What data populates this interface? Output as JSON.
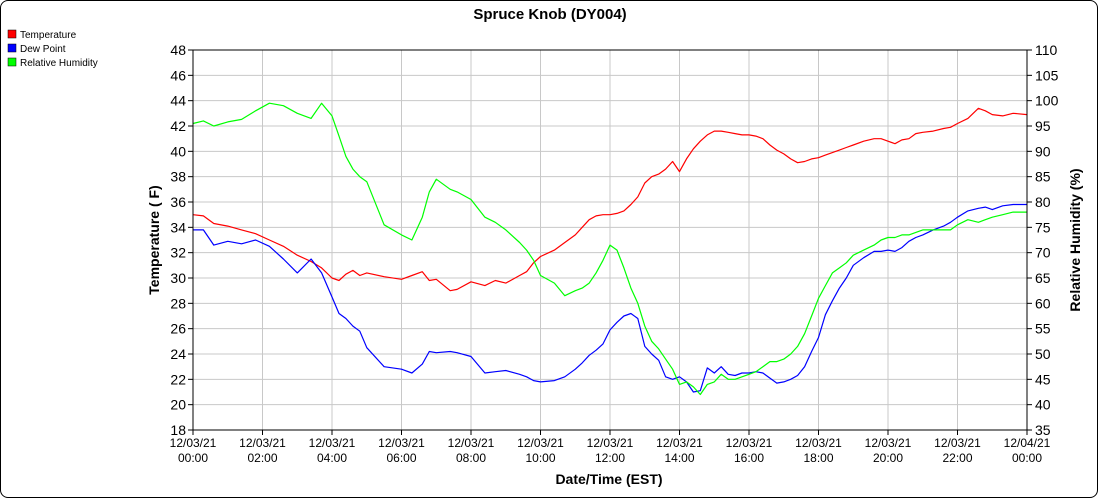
{
  "chart_data": {
    "type": "line",
    "title": "Spruce Knob (DY004)",
    "xlabel": "Date/Time (EST)",
    "ylabel_left": "Temperature ( F)",
    "ylabel_right": "Relative Humidity (%)",
    "ylim_left": [
      18,
      48
    ],
    "yticks_left": [
      "18",
      "20",
      "22",
      "24",
      "26",
      "28",
      "30",
      "32",
      "34",
      "36",
      "38",
      "40",
      "42",
      "44",
      "46",
      "48"
    ],
    "ylim_right": [
      35,
      110
    ],
    "yticks_right": [
      "35",
      "40",
      "45",
      "50",
      "55",
      "60",
      "65",
      "70",
      "75",
      "80",
      "85",
      "90",
      "95",
      "100",
      "105",
      "110"
    ],
    "xlim": [
      0,
      24
    ],
    "xticks": [
      {
        "date": "12/03/21",
        "time": "00:00"
      },
      {
        "date": "12/03/21",
        "time": "02:00"
      },
      {
        "date": "12/03/21",
        "time": "04:00"
      },
      {
        "date": "12/03/21",
        "time": "06:00"
      },
      {
        "date": "12/03/21",
        "time": "08:00"
      },
      {
        "date": "12/03/21",
        "time": "10:00"
      },
      {
        "date": "12/03/21",
        "time": "12:00"
      },
      {
        "date": "12/03/21",
        "time": "14:00"
      },
      {
        "date": "12/03/21",
        "time": "16:00"
      },
      {
        "date": "12/03/21",
        "time": "18:00"
      },
      {
        "date": "12/03/21",
        "time": "20:00"
      },
      {
        "date": "12/03/21",
        "time": "22:00"
      },
      {
        "date": "12/04/21",
        "time": "00:00"
      }
    ],
    "grid": true,
    "legend_position": "top-left",
    "series": [
      {
        "name": "Temperature",
        "color": "#ff0000",
        "axis": "left",
        "x": [
          0,
          0.3,
          0.6,
          1,
          1.4,
          1.8,
          2.2,
          2.6,
          3,
          3.4,
          3.7,
          4,
          4.2,
          4.4,
          4.6,
          4.8,
          5,
          5.5,
          6,
          6.3,
          6.6,
          6.8,
          7,
          7.4,
          7.6,
          8,
          8.4,
          8.7,
          9,
          9.4,
          9.6,
          9.8,
          10,
          10.4,
          10.7,
          11,
          11.2,
          11.4,
          11.6,
          11.8,
          12,
          12.2,
          12.4,
          12.6,
          12.8,
          13,
          13.2,
          13.4,
          13.6,
          13.8,
          14,
          14.2,
          14.4,
          14.6,
          14.8,
          15,
          15.2,
          15.4,
          15.6,
          15.8,
          16,
          16.2,
          16.4,
          16.6,
          16.8,
          17,
          17.2,
          17.4,
          17.6,
          17.8,
          18,
          18.2,
          18.4,
          18.6,
          18.8,
          19,
          19.3,
          19.6,
          19.8,
          20,
          20.2,
          20.4,
          20.6,
          20.8,
          21,
          21.3,
          21.6,
          21.8,
          22,
          22.3,
          22.6,
          22.8,
          23,
          23.3,
          23.6,
          24
        ],
        "values": [
          35,
          34.9,
          34.3,
          34.1,
          33.8,
          33.5,
          33,
          32.5,
          31.8,
          31.3,
          30.8,
          30,
          29.8,
          30.3,
          30.6,
          30.2,
          30.4,
          30.1,
          29.9,
          30.2,
          30.5,
          29.8,
          29.9,
          29,
          29.1,
          29.7,
          29.4,
          29.8,
          29.6,
          30.2,
          30.5,
          31.2,
          31.7,
          32.2,
          32.8,
          33.4,
          34,
          34.6,
          34.9,
          35,
          35,
          35.1,
          35.3,
          35.8,
          36.4,
          37.5,
          38,
          38.2,
          38.6,
          39.2,
          38.4,
          39.4,
          40.2,
          40.8,
          41.3,
          41.6,
          41.6,
          41.5,
          41.4,
          41.3,
          41.3,
          41.2,
          41,
          40.5,
          40.1,
          39.8,
          39.4,
          39.1,
          39.2,
          39.4,
          39.5,
          39.7,
          39.9,
          40.1,
          40.3,
          40.5,
          40.8,
          41,
          41,
          40.8,
          40.6,
          40.9,
          41,
          41.4,
          41.5,
          41.6,
          41.8,
          41.9,
          42.2,
          42.6,
          43.4,
          43.2,
          42.9,
          42.8,
          43,
          42.9
        ]
      },
      {
        "name": "Dew Point",
        "color": "#0000ff",
        "axis": "left",
        "x": [
          0,
          0.3,
          0.6,
          1,
          1.4,
          1.8,
          2.2,
          2.6,
          3,
          3.4,
          3.7,
          4,
          4.2,
          4.4,
          4.6,
          4.8,
          5,
          5.5,
          6,
          6.3,
          6.6,
          6.8,
          7,
          7.4,
          7.6,
          8,
          8.4,
          8.7,
          9,
          9.4,
          9.6,
          9.8,
          10,
          10.4,
          10.7,
          11,
          11.2,
          11.4,
          11.6,
          11.8,
          12,
          12.2,
          12.4,
          12.6,
          12.8,
          13,
          13.2,
          13.4,
          13.6,
          13.8,
          14,
          14.2,
          14.4,
          14.6,
          14.8,
          15,
          15.2,
          15.4,
          15.6,
          15.8,
          16,
          16.2,
          16.4,
          16.6,
          16.8,
          17,
          17.2,
          17.4,
          17.6,
          17.8,
          18,
          18.2,
          18.4,
          18.6,
          18.8,
          19,
          19.3,
          19.6,
          19.8,
          20,
          20.2,
          20.4,
          20.6,
          20.8,
          21,
          21.3,
          21.6,
          21.8,
          22,
          22.3,
          22.6,
          22.8,
          23,
          23.3,
          23.6,
          24
        ],
        "values": [
          33.8,
          33.8,
          32.6,
          32.9,
          32.7,
          33,
          32.5,
          31.5,
          30.4,
          31.5,
          30.4,
          28.5,
          27.2,
          26.8,
          26.2,
          25.8,
          24.5,
          23,
          22.8,
          22.5,
          23.2,
          24.2,
          24.1,
          24.2,
          24.1,
          23.8,
          22.5,
          22.6,
          22.7,
          22.4,
          22.2,
          21.9,
          21.8,
          21.9,
          22.2,
          22.8,
          23.3,
          23.9,
          24.3,
          24.8,
          25.9,
          26.5,
          27,
          27.2,
          26.8,
          24.6,
          24,
          23.5,
          22.2,
          22,
          22.2,
          21.8,
          21,
          21.1,
          22.9,
          22.5,
          23,
          22.4,
          22.3,
          22.5,
          22.5,
          22.6,
          22.5,
          22.1,
          21.7,
          21.8,
          22,
          22.3,
          23,
          24.2,
          25.3,
          27.1,
          28.2,
          29.2,
          30,
          31,
          31.6,
          32.1,
          32.1,
          32.2,
          32.1,
          32.4,
          32.9,
          33.2,
          33.4,
          33.8,
          34.1,
          34.4,
          34.8,
          35.3,
          35.5,
          35.6,
          35.4,
          35.7,
          35.8,
          35.8
        ]
      },
      {
        "name": "Relative Humidity",
        "color": "#00ff00",
        "axis": "right",
        "x": [
          0,
          0.3,
          0.6,
          1,
          1.4,
          1.8,
          2.2,
          2.6,
          3,
          3.4,
          3.7,
          4,
          4.2,
          4.4,
          4.6,
          4.8,
          5,
          5.5,
          6,
          6.3,
          6.6,
          6.8,
          7,
          7.4,
          7.6,
          8,
          8.4,
          8.7,
          9,
          9.4,
          9.6,
          9.8,
          10,
          10.4,
          10.7,
          11,
          11.2,
          11.4,
          11.6,
          11.8,
          12,
          12.2,
          12.4,
          12.6,
          12.8,
          13,
          13.2,
          13.4,
          13.6,
          13.8,
          14,
          14.2,
          14.4,
          14.6,
          14.8,
          15,
          15.2,
          15.4,
          15.6,
          15.8,
          16,
          16.2,
          16.4,
          16.6,
          16.8,
          17,
          17.2,
          17.4,
          17.6,
          17.8,
          18,
          18.2,
          18.4,
          18.6,
          18.8,
          19,
          19.3,
          19.6,
          19.8,
          20,
          20.2,
          20.4,
          20.6,
          20.8,
          21,
          21.3,
          21.6,
          21.8,
          22,
          22.3,
          22.6,
          22.8,
          23,
          23.3,
          23.6,
          24
        ],
        "values": [
          95.5,
          96,
          95,
          95.8,
          96.3,
          98,
          99.5,
          99,
          97.5,
          96.5,
          99.5,
          97,
          93,
          89,
          86.5,
          85,
          84,
          75.5,
          73.5,
          72.5,
          77,
          82,
          84.5,
          82.5,
          82,
          80.5,
          77,
          76,
          74.5,
          72,
          70.5,
          68.5,
          65.5,
          64,
          61.5,
          62.5,
          63,
          64,
          66,
          68.5,
          71.5,
          70.5,
          67,
          63,
          60,
          55.5,
          52.5,
          51,
          49,
          47,
          44,
          44.5,
          43.5,
          42,
          44,
          44.5,
          46,
          45,
          45,
          45.5,
          46,
          46.5,
          47.5,
          48.5,
          48.5,
          49,
          50,
          51.5,
          54,
          57.5,
          61,
          63.5,
          66,
          67,
          68,
          69.5,
          70.5,
          71.5,
          72.5,
          73,
          73,
          73.5,
          73.5,
          74,
          74.5,
          74.5,
          74.5,
          74.5,
          75.5,
          76.5,
          76,
          76.5,
          77,
          77.5,
          78,
          78
        ]
      }
    ]
  }
}
